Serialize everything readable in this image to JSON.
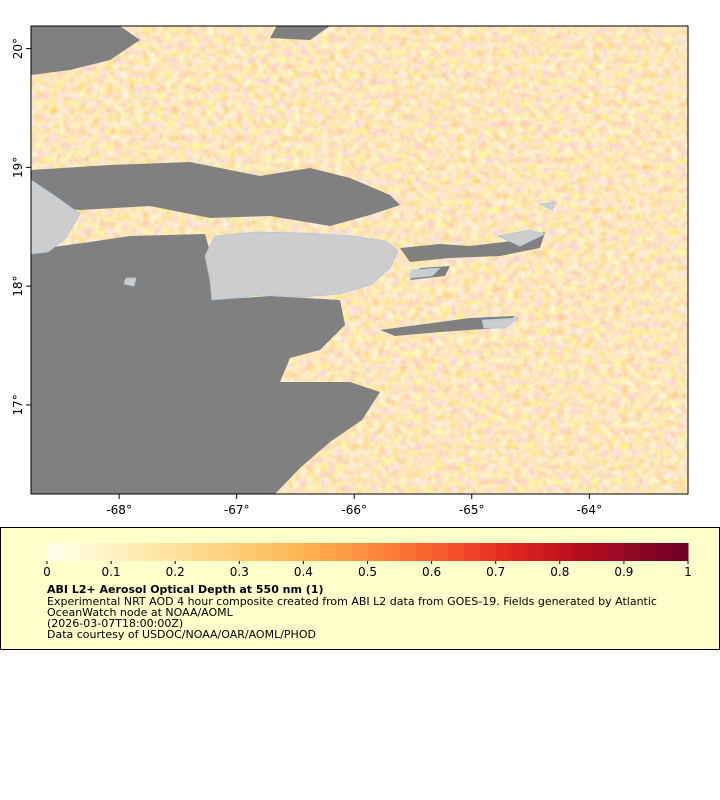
{
  "map": {
    "xlim": [
      -68.75,
      -63.16
    ],
    "ylim": [
      16.25,
      20.19
    ],
    "xticks": [
      {
        "value": -68,
        "label": "-68°"
      },
      {
        "value": -67,
        "label": "-67°"
      },
      {
        "value": -66,
        "label": "-66°"
      },
      {
        "value": -65,
        "label": "-65°"
      },
      {
        "value": -64,
        "label": "-64°"
      }
    ],
    "yticks": [
      {
        "value": 17,
        "label": "17°"
      },
      {
        "value": 18,
        "label": "18°"
      },
      {
        "value": 19,
        "label": "19°"
      },
      {
        "value": 20,
        "label": "20°"
      }
    ]
  },
  "colorbar": {
    "range": [
      0,
      1
    ],
    "ticks": [
      0,
      0.1,
      0.2,
      0.3,
      0.4,
      0.5,
      0.6,
      0.7,
      0.8,
      0.9,
      1
    ],
    "cells": 40,
    "colors": [
      "#fffee6",
      "#fff2c2",
      "#fee4a0",
      "#fed27e",
      "#fdbe5c",
      "#fd9f47",
      "#fc7a35",
      "#f4512a",
      "#e0281f",
      "#c0101e",
      "#970a24",
      "#720026"
    ]
  },
  "legend": {
    "title": "ABI L2+ Aerosol Optical Depth at 550 nm (1)",
    "lines": [
      "Experimental NRT AOD 4 hour composite created from ABI L2 data from GOES-19. Fields generated by Atlantic",
      "OceanWatch node at NOAA/AOML",
      "(2026-03-07T18:00:00Z)",
      "Data courtesy of USDOC/NOAA/OAR/AOML/PHOD"
    ]
  }
}
